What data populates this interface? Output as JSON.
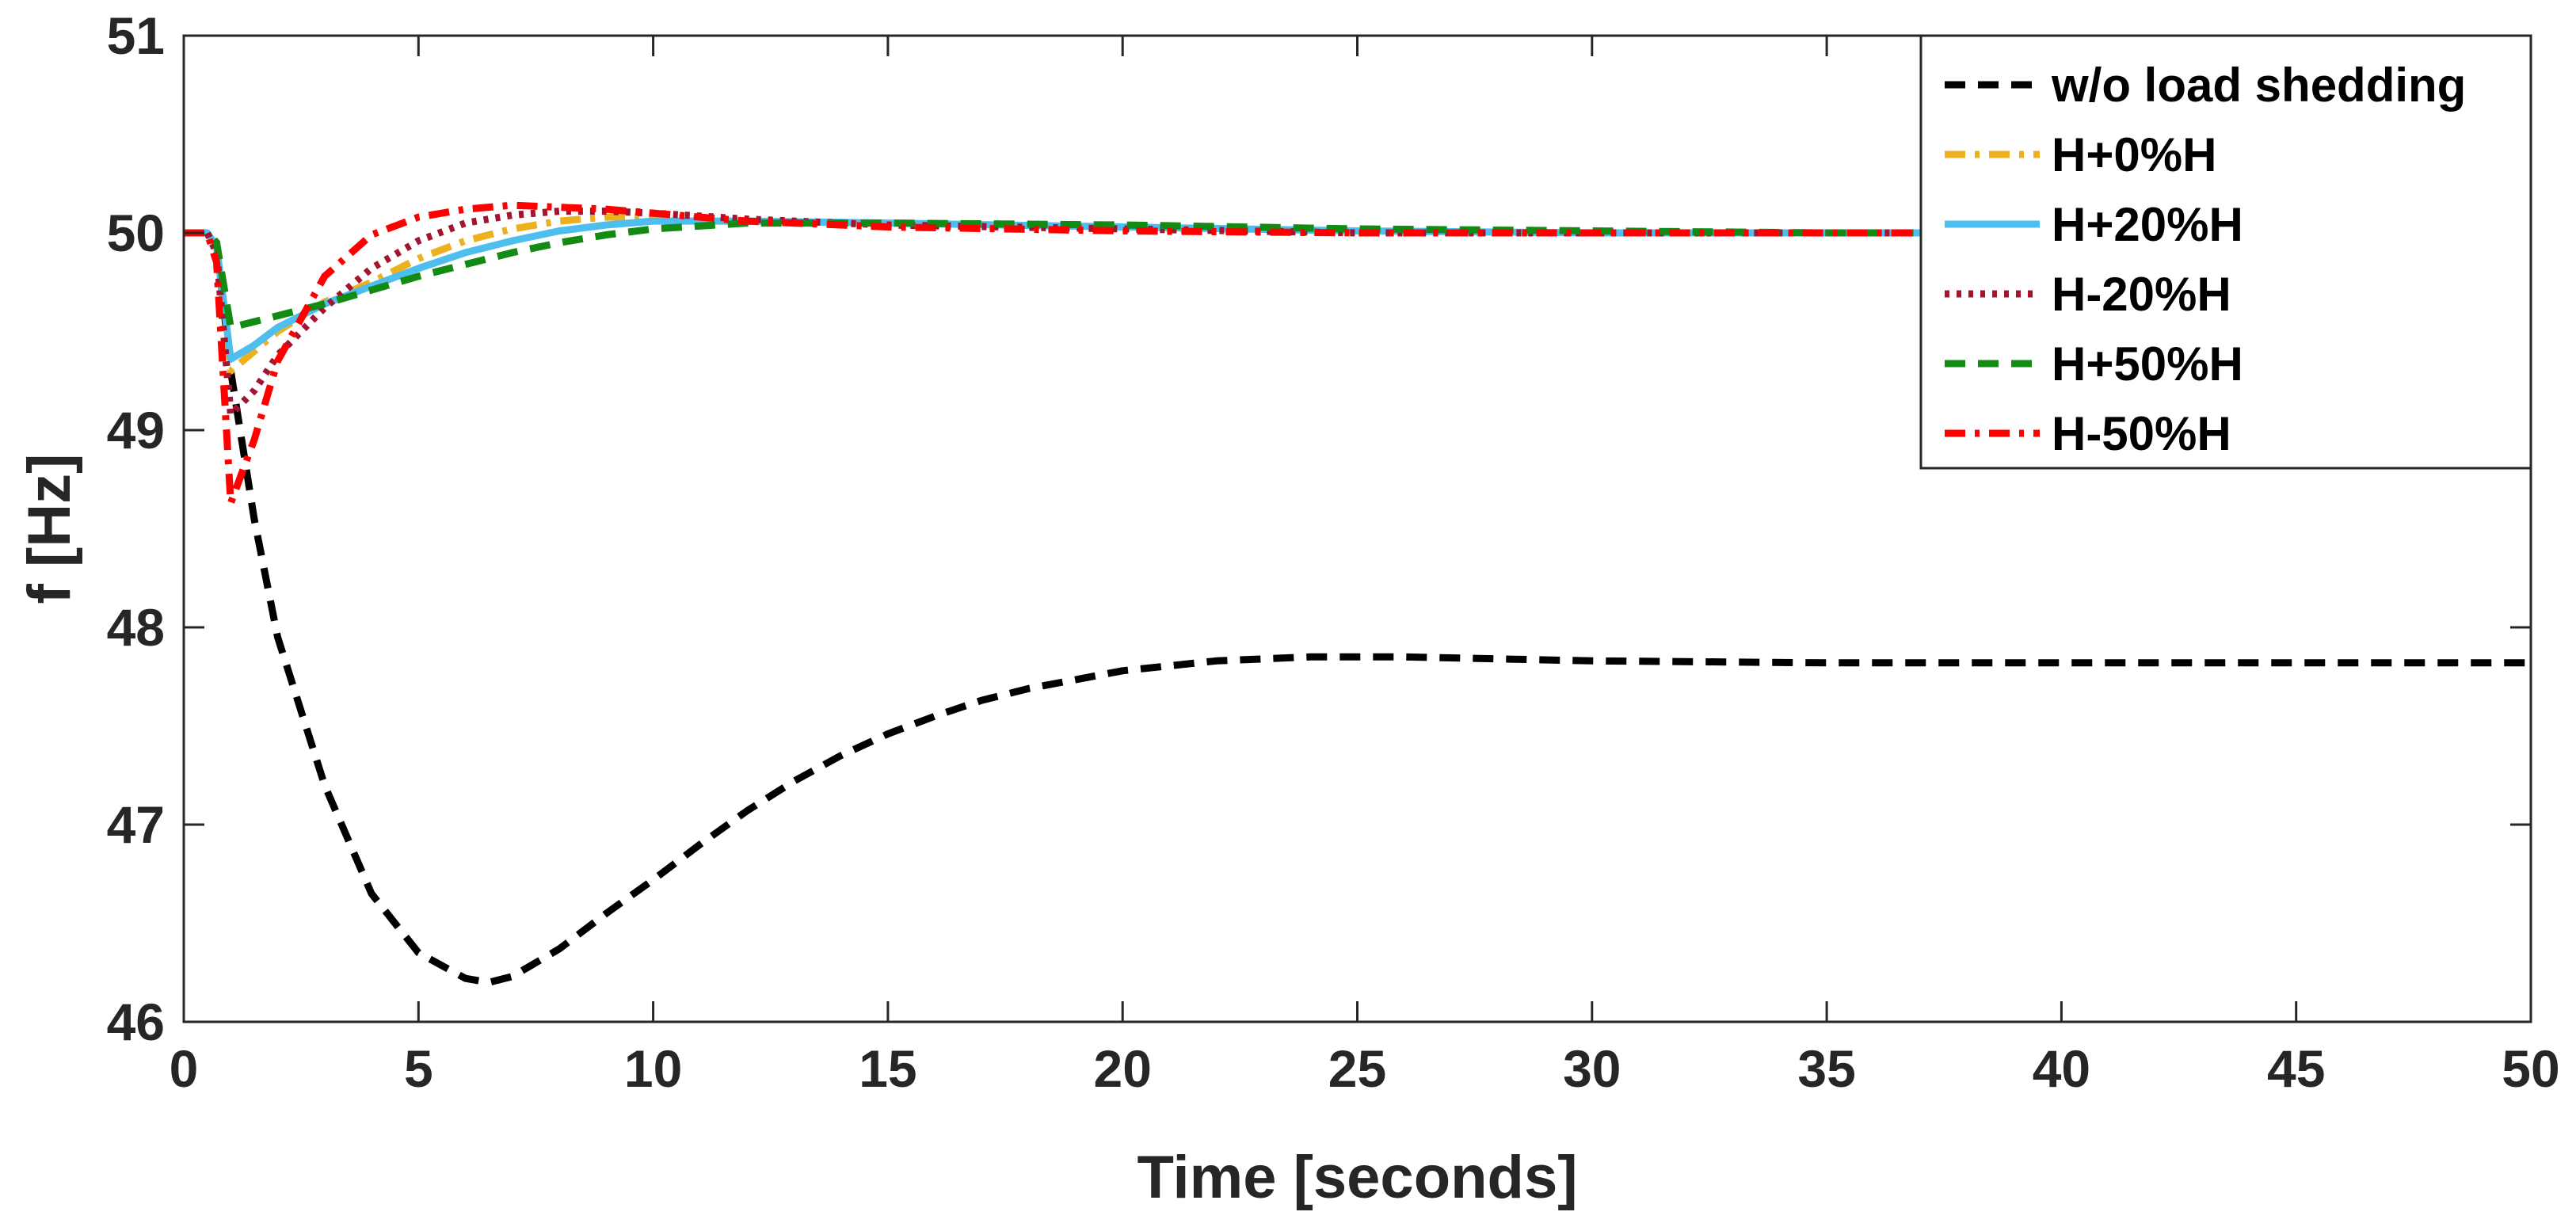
{
  "chart_data": {
    "type": "line",
    "title": "",
    "xlabel": "Time [seconds]",
    "ylabel": "f [Hz]",
    "xlim": [
      0,
      50
    ],
    "ylim": [
      46,
      51
    ],
    "xticks": [
      0,
      5,
      10,
      15,
      20,
      25,
      30,
      35,
      40,
      45,
      50
    ],
    "yticks": [
      46,
      47,
      48,
      49,
      50,
      51
    ],
    "grid": false,
    "legend_position": "top-right",
    "series": [
      {
        "name": "w/o load shedding",
        "color": "#000000",
        "style": "dashed",
        "x": [
          0,
          0.5,
          0.7,
          1,
          1.5,
          2,
          3,
          4,
          5,
          6,
          6.5,
          7,
          8,
          9,
          10,
          11,
          12,
          13,
          14,
          15,
          16,
          17,
          18,
          20,
          22,
          24,
          25,
          26,
          28,
          30,
          35,
          40,
          45,
          50
        ],
        "y": [
          50,
          50,
          49.95,
          49.3,
          48.55,
          47.95,
          47.2,
          46.65,
          46.35,
          46.22,
          46.2,
          46.23,
          46.37,
          46.55,
          46.72,
          46.9,
          47.07,
          47.22,
          47.35,
          47.46,
          47.55,
          47.63,
          47.69,
          47.78,
          47.83,
          47.85,
          47.85,
          47.85,
          47.84,
          47.83,
          47.82,
          47.82,
          47.82,
          47.82
        ]
      },
      {
        "name": "H+0%H",
        "color": "#EDB120",
        "style": "dashdot",
        "x": [
          0,
          0.5,
          0.7,
          1,
          1.5,
          2,
          3,
          4,
          5,
          6,
          7,
          8,
          9,
          10,
          12,
          15,
          20,
          25,
          30,
          50
        ],
        "y": [
          50,
          50,
          49.92,
          49.3,
          49.4,
          49.5,
          49.65,
          49.75,
          49.87,
          49.96,
          50.02,
          50.06,
          50.08,
          50.08,
          50.06,
          50.04,
          50.02,
          50.0,
          50.0,
          50.0
        ]
      },
      {
        "name": "H+20%H",
        "color": "#4DBEEE",
        "style": "solid",
        "x": [
          0,
          0.5,
          0.7,
          1,
          1.5,
          2,
          3,
          4,
          5,
          6,
          7,
          8,
          9,
          10,
          12,
          15,
          20,
          25,
          30,
          50
        ],
        "y": [
          50,
          50,
          49.93,
          49.36,
          49.43,
          49.52,
          49.64,
          49.73,
          49.82,
          49.9,
          49.96,
          50.01,
          50.04,
          50.06,
          50.06,
          50.05,
          50.03,
          50.01,
          50.0,
          50.0
        ]
      },
      {
        "name": "H-20%H",
        "color": "#A2142F",
        "style": "dotted",
        "x": [
          0,
          0.5,
          0.7,
          1,
          1.5,
          2,
          3,
          4,
          5,
          6,
          7,
          8,
          9,
          10,
          12,
          15,
          20,
          25,
          30,
          50
        ],
        "y": [
          50,
          50,
          49.9,
          49.08,
          49.2,
          49.38,
          49.62,
          49.82,
          49.96,
          50.05,
          50.09,
          50.11,
          50.11,
          50.1,
          50.07,
          50.04,
          50.02,
          50.0,
          50.0,
          50.0
        ]
      },
      {
        "name": "H+50%H",
        "color": "#138A13",
        "style": "dashed",
        "x": [
          0,
          0.5,
          0.7,
          1,
          1.5,
          2,
          3,
          4,
          5,
          6,
          7,
          8,
          9,
          10,
          12,
          15,
          20,
          25,
          30,
          35,
          50
        ],
        "y": [
          50,
          50,
          49.95,
          49.52,
          49.55,
          49.58,
          49.64,
          49.71,
          49.78,
          49.84,
          49.9,
          49.95,
          49.99,
          50.02,
          50.05,
          50.05,
          50.04,
          50.02,
          50.01,
          50.0,
          50.0
        ]
      },
      {
        "name": "H-50%H",
        "color": "#FF0000",
        "style": "dashdot",
        "x": [
          0,
          0.5,
          0.7,
          1,
          1.5,
          2,
          3,
          4,
          5,
          6,
          7,
          8,
          9,
          10,
          12,
          15,
          20,
          25,
          30,
          50
        ],
        "y": [
          50,
          50,
          49.85,
          48.63,
          48.95,
          49.35,
          49.78,
          49.99,
          50.08,
          50.12,
          50.14,
          50.13,
          50.12,
          50.1,
          50.06,
          50.03,
          50.01,
          50.0,
          50.0,
          50.0
        ]
      }
    ]
  }
}
